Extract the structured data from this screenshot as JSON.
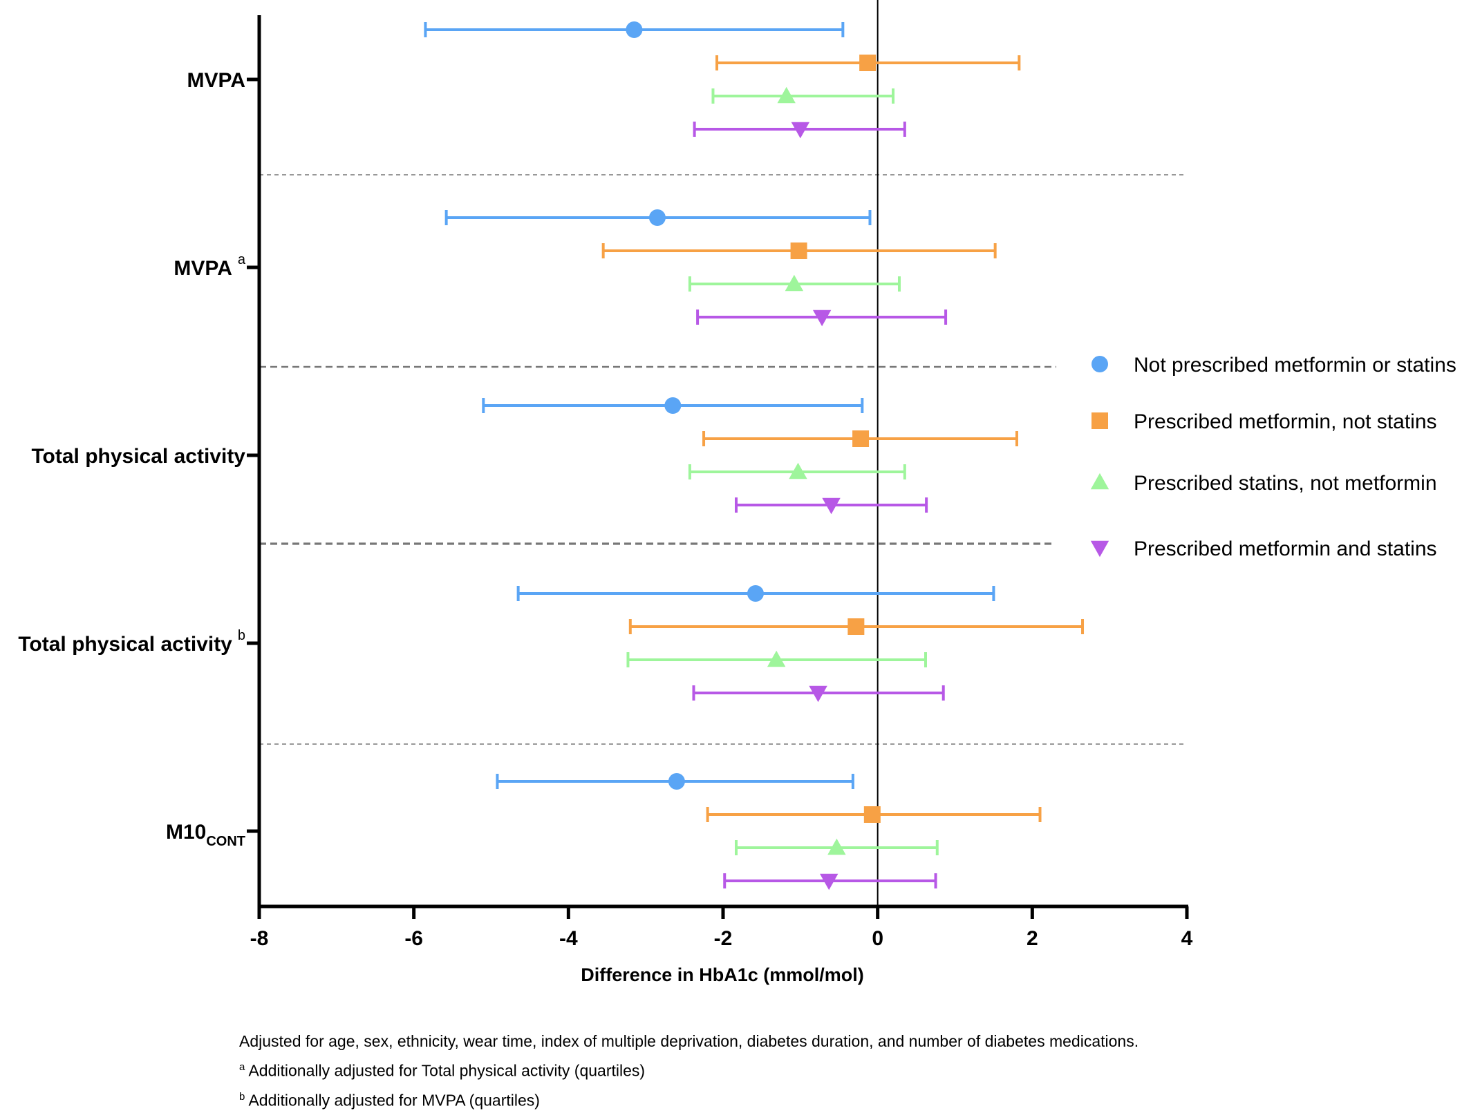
{
  "chart_data": {
    "type": "forest",
    "xlabel": "Difference in HbA1c (mmol/mol)",
    "xlim": [
      -8,
      4
    ],
    "xticks": [
      -8,
      -6,
      -4,
      -2,
      0,
      2,
      4
    ],
    "reference_line": 0,
    "rows": [
      {
        "label": "MVPA",
        "sup": "",
        "sub": ""
      },
      {
        "label": "MVPA",
        "sup": "a",
        "sub": ""
      },
      {
        "label": "Total physical activity",
        "sup": "",
        "sub": ""
      },
      {
        "label": "Total physical activity",
        "sup": "b",
        "sub": ""
      },
      {
        "label": "M10",
        "sup": "",
        "sub": "CONT"
      }
    ],
    "series": [
      {
        "name": "Not prescribed metformin or statins",
        "marker": "circle",
        "color": "#5aa5f5",
        "estimates": [
          -3.15,
          -2.85,
          -2.65,
          -1.58,
          -2.6
        ],
        "lower": [
          -5.85,
          -5.58,
          -5.1,
          -4.65,
          -4.92
        ],
        "upper": [
          -0.45,
          -0.1,
          -0.2,
          1.5,
          -0.32
        ]
      },
      {
        "name": "Prescribed metformin, not statins",
        "marker": "square",
        "color": "#f7a145",
        "estimates": [
          -0.13,
          -1.02,
          -0.22,
          -0.28,
          -0.07
        ],
        "lower": [
          -2.08,
          -3.55,
          -2.25,
          -3.2,
          -2.2
        ],
        "upper": [
          1.83,
          1.52,
          1.8,
          2.65,
          2.1
        ]
      },
      {
        "name": "Prescribed statins, not metformin",
        "marker": "triangle-up",
        "color": "#9ef59b",
        "estimates": [
          -1.18,
          -1.08,
          -1.03,
          -1.31,
          -0.53
        ],
        "lower": [
          -2.13,
          -2.43,
          -2.43,
          -3.23,
          -1.83
        ],
        "upper": [
          0.2,
          0.28,
          0.35,
          0.62,
          0.77
        ]
      },
      {
        "name": "Prescribed metformin and statins",
        "marker": "triangle-down",
        "color": "#b758e6",
        "estimates": [
          -1.0,
          -0.72,
          -0.6,
          -0.77,
          -0.63
        ],
        "lower": [
          -2.37,
          -2.33,
          -1.83,
          -2.38,
          -1.98
        ],
        "upper": [
          0.35,
          0.88,
          0.63,
          0.85,
          0.75
        ]
      }
    ]
  },
  "footnotes": {
    "main": "Adjusted for age, sex, ethnicity, wear time, index of multiple deprivation, diabetes duration, and number of diabetes medications.",
    "a_mark": "a",
    "a_text": "Additionally adjusted for Total physical activity (quartiles)",
    "b_mark": "b",
    "b_text": "Additionally adjusted for MVPA (quartiles)"
  }
}
